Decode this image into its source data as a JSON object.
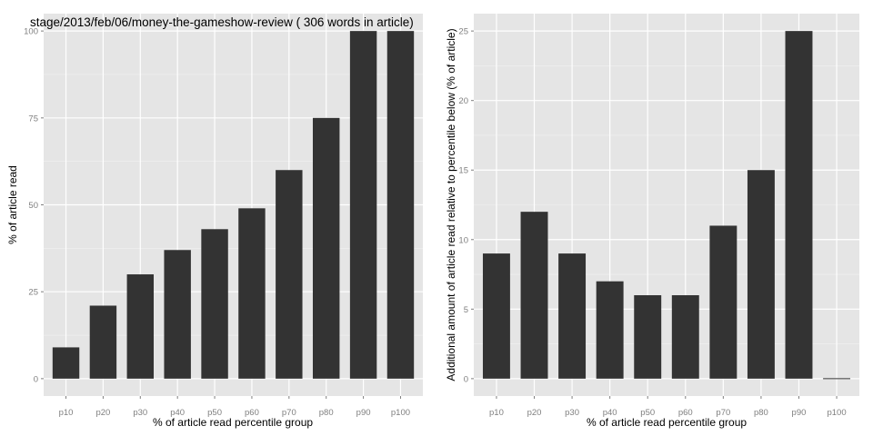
{
  "chart_data": [
    {
      "type": "bar",
      "title": "stage/2013/feb/06/money-the-gameshow-review ( 306 words in article)",
      "xlabel": "% of article read percentile group",
      "ylabel": "% of article read",
      "categories": [
        "p10",
        "p20",
        "p30",
        "p40",
        "p50",
        "p60",
        "p70",
        "p80",
        "p90",
        "p100"
      ],
      "values": [
        9,
        21,
        30,
        37,
        43,
        49,
        60,
        75,
        100,
        100
      ],
      "yticks": [
        0,
        25,
        50,
        75,
        100
      ],
      "ylim": [
        -5,
        105
      ],
      "grid": true,
      "colors": {
        "bar": "#333333",
        "panel": "#e5e5e5",
        "grid": "#ffffff"
      }
    },
    {
      "type": "bar",
      "title": "",
      "xlabel": "% of article read percentile group",
      "ylabel": "Additional amount of article read relative to percentile below (% of article)",
      "categories": [
        "p10",
        "p20",
        "p30",
        "p40",
        "p50",
        "p60",
        "p70",
        "p80",
        "p90",
        "p100"
      ],
      "values": [
        9,
        12,
        9,
        7,
        6,
        6,
        11,
        15,
        25,
        0
      ],
      "yticks": [
        0,
        5,
        10,
        15,
        20,
        25
      ],
      "ylim": [
        -1.25,
        26.25
      ],
      "grid": true,
      "colors": {
        "bar": "#333333",
        "panel": "#e5e5e5",
        "grid": "#ffffff"
      }
    }
  ]
}
